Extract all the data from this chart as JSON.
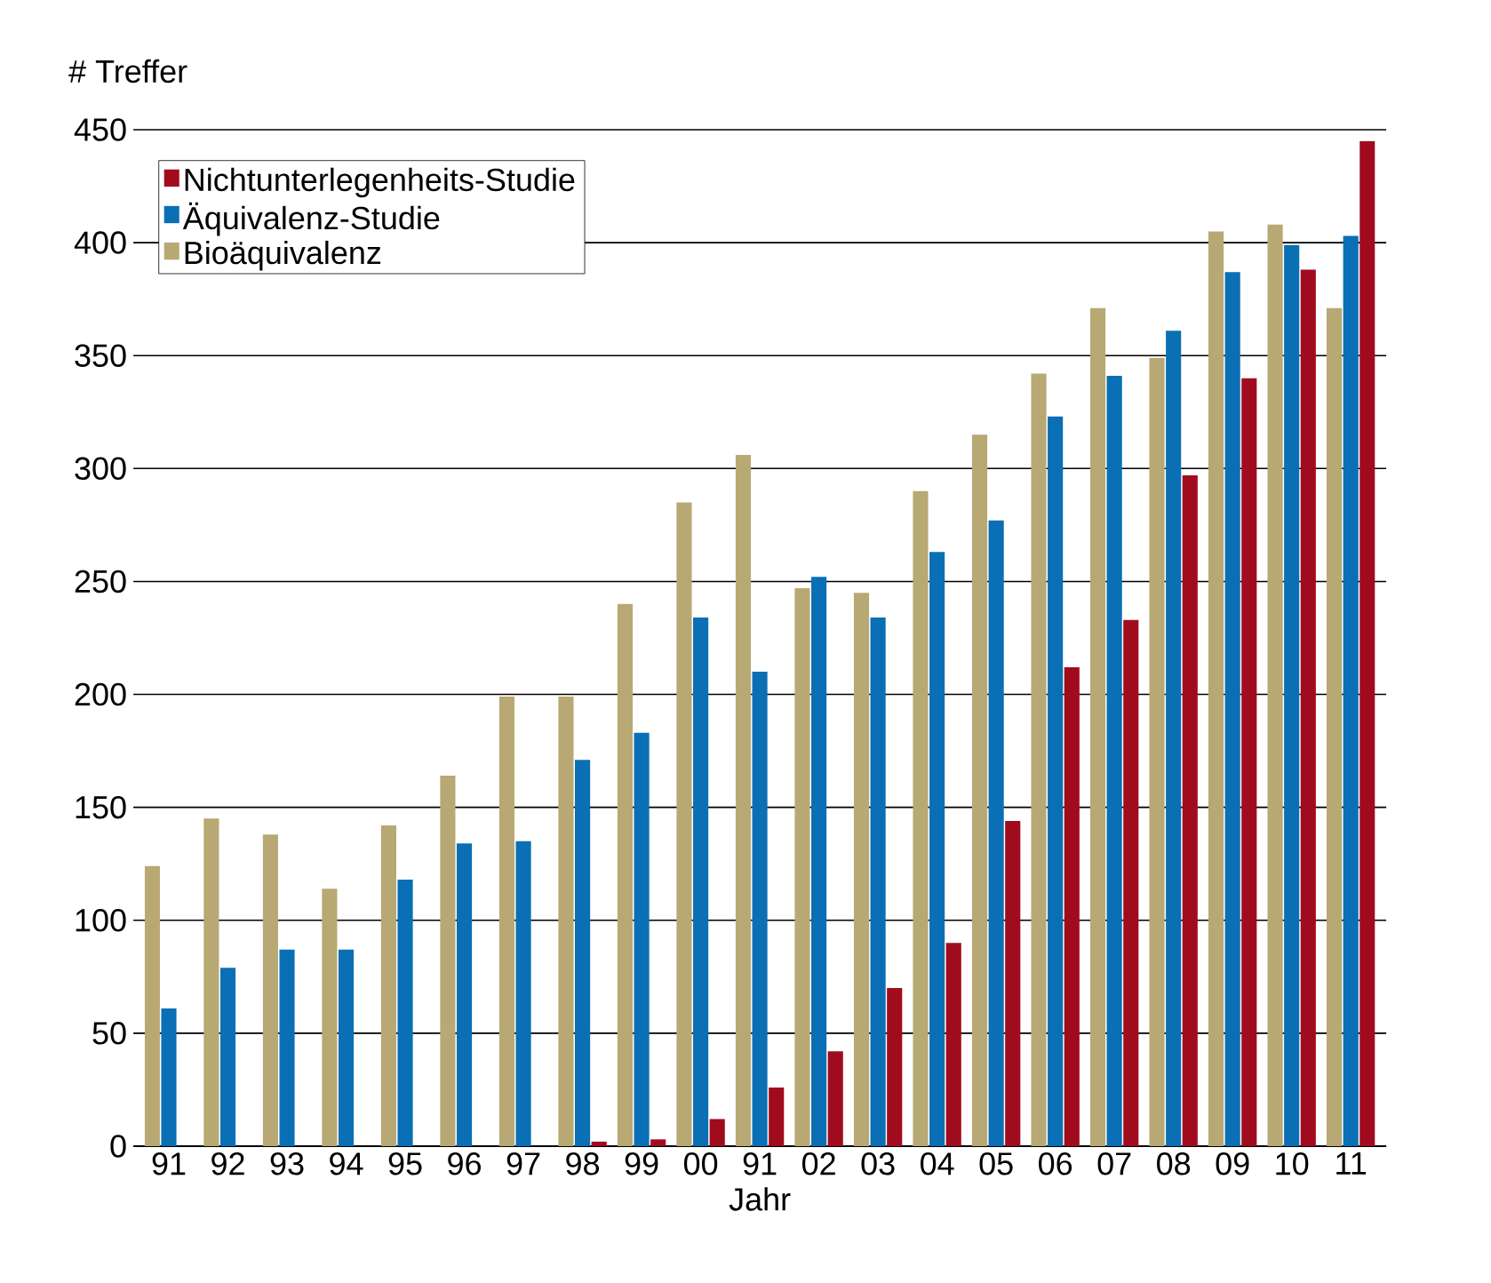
{
  "chart_data": {
    "type": "bar",
    "title": "# Treffer",
    "xlabel": "Jahr",
    "categories": [
      "91",
      "92",
      "93",
      "94",
      "95",
      "96",
      "97",
      "98",
      "99",
      "00",
      "91",
      "02",
      "03",
      "04",
      "05",
      "06",
      "07",
      "08",
      "09",
      "10",
      "11"
    ],
    "series": [
      {
        "name": "Bioäquivalenz",
        "color": "#b8a873",
        "values": [
          124,
          145,
          138,
          114,
          142,
          164,
          199,
          199,
          240,
          285,
          306,
          247,
          245,
          290,
          315,
          342,
          371,
          349,
          405,
          408,
          371
        ]
      },
      {
        "name": "Äquivalenz-Studie",
        "color": "#0a6fb5",
        "values": [
          61,
          79,
          87,
          87,
          118,
          134,
          135,
          171,
          183,
          234,
          210,
          252,
          234,
          263,
          277,
          323,
          341,
          361,
          387,
          399,
          403
        ]
      },
      {
        "name": "Nichtunterlegenheits-Studie",
        "color": "#a00c1e",
        "values": [
          0,
          0,
          0,
          0,
          0,
          0,
          0,
          2,
          3,
          12,
          26,
          42,
          70,
          90,
          144,
          212,
          233,
          297,
          340,
          388,
          445
        ]
      }
    ],
    "ylim": [
      0,
      450
    ],
    "yticks": [
      0,
      50,
      100,
      150,
      200,
      250,
      300,
      350,
      400,
      450
    ],
    "grid": "y",
    "legend": "top left"
  }
}
